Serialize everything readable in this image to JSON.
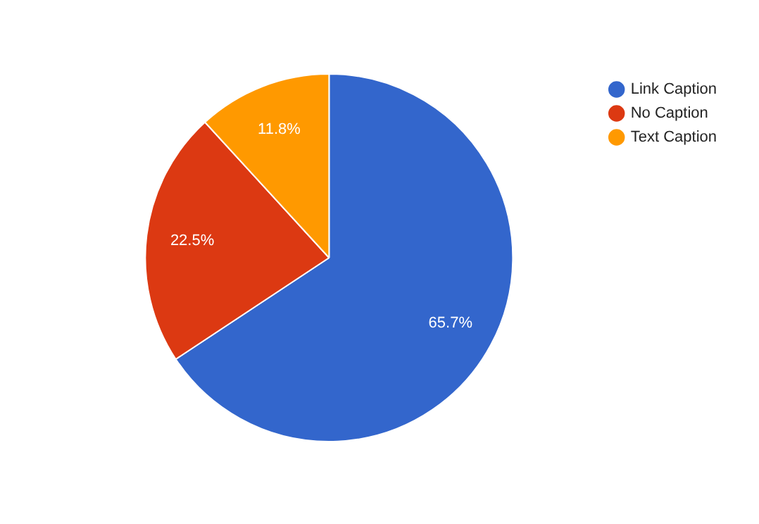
{
  "chart_data": {
    "type": "pie",
    "categories": [
      "Link Caption",
      "No Caption",
      "Text Caption"
    ],
    "values": [
      65.7,
      22.5,
      11.8
    ],
    "colors": [
      "#3366cc",
      "#dc3912",
      "#ff9900"
    ],
    "value_labels": [
      "65.7%",
      "22.5%",
      "11.8%"
    ],
    "legend": "top right"
  }
}
